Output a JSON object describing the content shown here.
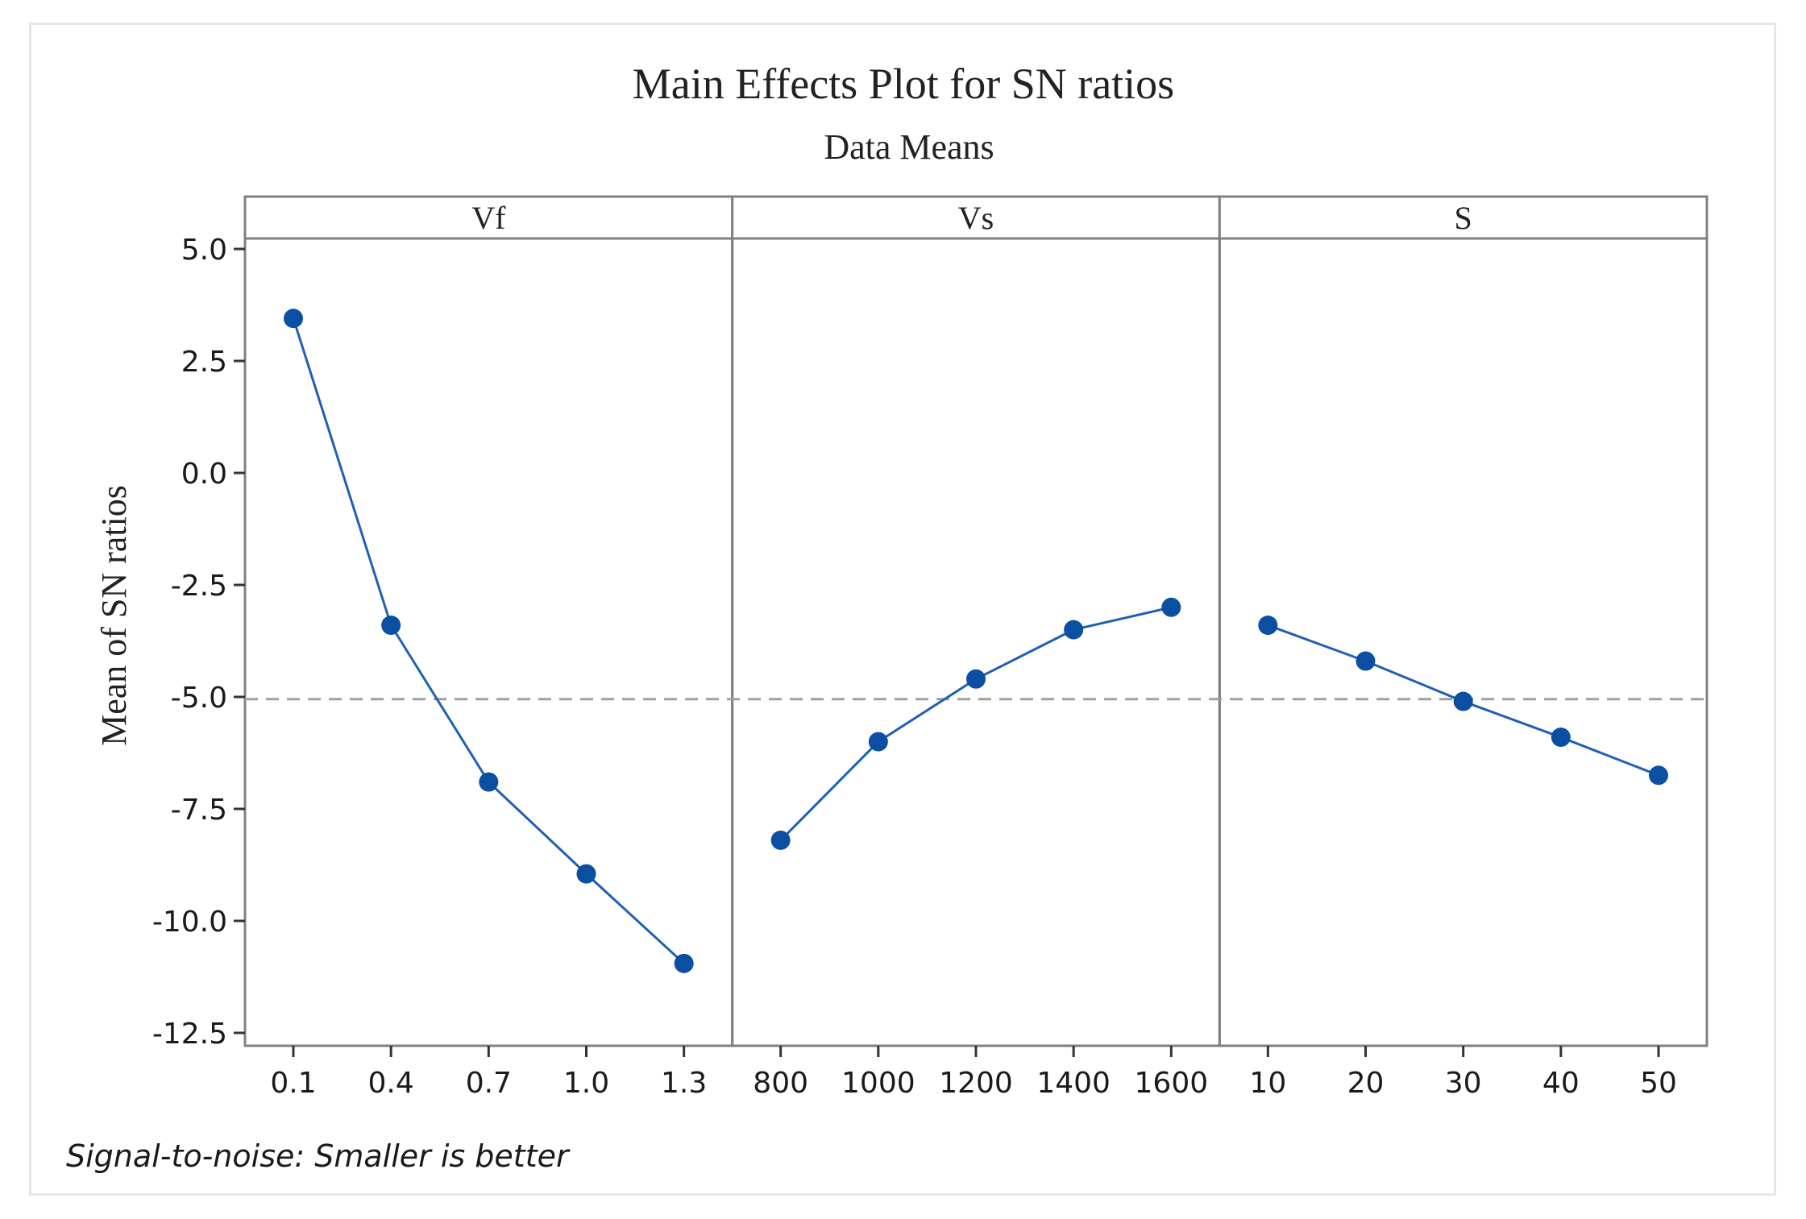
{
  "chart_data": {
    "type": "line",
    "title": "Main Effects Plot for SN ratios",
    "subtitle": "Data Means",
    "ylabel": "Mean of SN ratios",
    "ylim": [
      -12.5,
      5.0
    ],
    "yticks": [
      "5.0",
      "2.5",
      "0.0",
      "-2.5",
      "-5.0",
      "-7.5",
      "-10.0",
      "-12.5"
    ],
    "ytick_values": [
      5.0,
      2.5,
      0.0,
      -2.5,
      -5.0,
      -7.5,
      -10.0,
      -12.5
    ],
    "reference_line": {
      "value": -5.05,
      "style": "dashed"
    },
    "panels": [
      {
        "name": "Vf",
        "categories": [
          "0.1",
          "0.4",
          "0.7",
          "1.0",
          "1.3"
        ],
        "values": [
          3.45,
          -3.4,
          -6.9,
          -8.95,
          -10.95
        ]
      },
      {
        "name": "Vs",
        "categories": [
          "800",
          "1000",
          "1200",
          "1400",
          "1600"
        ],
        "values": [
          -8.2,
          -6.0,
          -4.6,
          -3.5,
          -3.0
        ]
      },
      {
        "name": "S",
        "categories": [
          "10",
          "20",
          "30",
          "40",
          "50"
        ],
        "values": [
          -3.4,
          -4.2,
          -5.1,
          -5.9,
          -6.75
        ]
      }
    ],
    "footnote": "Signal-to-noise: Smaller is better",
    "colors": {
      "series": "#1f5fb5",
      "marker": "#0b4fa3",
      "reference": "#a0a0a0",
      "frame": "#808080"
    }
  }
}
